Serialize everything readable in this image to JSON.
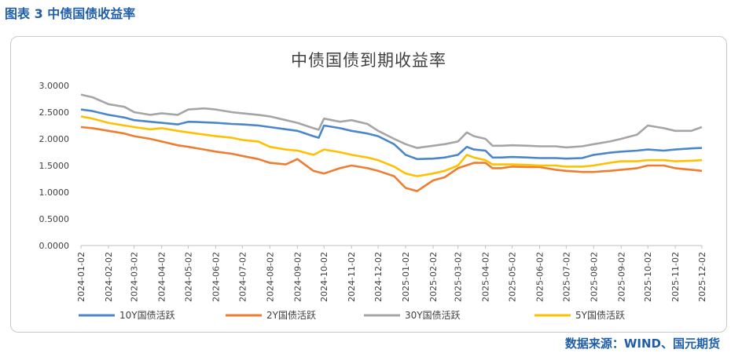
{
  "caption": "图表 3 中债国债收益率",
  "source": "数据来源：WIND、国元期货",
  "chart_data": {
    "type": "line",
    "title": "中债国债到期收益率",
    "ylim": [
      0,
      3
    ],
    "ytick_labels": [
      "0.0000",
      "0.5000",
      "1.0000",
      "1.5000",
      "2.0000",
      "2.5000",
      "3.0000"
    ],
    "ytick_values": [
      0,
      0.5,
      1,
      1.5,
      2,
      2.5,
      3
    ],
    "x_start": "2024-01-02",
    "x_end": "2025-12-02",
    "xtick_labels": [
      "2024-01-02",
      "2024-02-02",
      "2024-03-02",
      "2024-04-02",
      "2024-05-02",
      "2024-06-02",
      "2024-07-02",
      "2024-08-02",
      "2024-09-02",
      "2024-10-02",
      "2024-11-02",
      "2024-12-02",
      "2025-01-02",
      "2025-02-02",
      "2025-03-02",
      "2025-04-02",
      "2025-05-02",
      "2025-06-02",
      "2025-07-02",
      "2025-08-02",
      "2025-09-02",
      "2025-10-02",
      "2025-11-02",
      "2025-12-02"
    ],
    "grid": false,
    "legend_position": "bottom",
    "series": [
      {
        "name": "10Y国债活跃",
        "color": "#4a86c9",
        "x": [
          "2024-01-02",
          "2024-01-15",
          "2024-02-02",
          "2024-02-20",
          "2024-03-02",
          "2024-03-20",
          "2024-04-02",
          "2024-04-20",
          "2024-05-02",
          "2024-05-20",
          "2024-06-02",
          "2024-06-20",
          "2024-07-02",
          "2024-07-20",
          "2024-08-02",
          "2024-08-20",
          "2024-09-02",
          "2024-09-20",
          "2024-09-26",
          "2024-10-02",
          "2024-10-20",
          "2024-11-02",
          "2024-11-20",
          "2024-12-02",
          "2024-12-20",
          "2025-01-02",
          "2025-01-15",
          "2025-02-02",
          "2025-02-15",
          "2025-03-02",
          "2025-03-12",
          "2025-03-20",
          "2025-04-02",
          "2025-04-10",
          "2025-04-20",
          "2025-05-02",
          "2025-05-20",
          "2025-06-02",
          "2025-06-20",
          "2025-07-02",
          "2025-07-20",
          "2025-08-02",
          "2025-08-20",
          "2025-09-02",
          "2025-09-20",
          "2025-10-02",
          "2025-10-20",
          "2025-11-02",
          "2025-11-20",
          "2025-12-02"
        ],
        "values": [
          2.55,
          2.52,
          2.45,
          2.4,
          2.35,
          2.32,
          2.3,
          2.27,
          2.32,
          2.31,
          2.3,
          2.28,
          2.27,
          2.25,
          2.22,
          2.18,
          2.15,
          2.05,
          2.02,
          2.25,
          2.2,
          2.15,
          2.1,
          2.05,
          1.9,
          1.7,
          1.62,
          1.63,
          1.65,
          1.7,
          1.85,
          1.8,
          1.78,
          1.65,
          1.65,
          1.66,
          1.65,
          1.64,
          1.64,
          1.63,
          1.64,
          1.7,
          1.74,
          1.76,
          1.78,
          1.8,
          1.78,
          1.8,
          1.82,
          1.83
        ]
      },
      {
        "name": "2Y国债活跃",
        "color": "#ed7d31",
        "x": [
          "2024-01-02",
          "2024-01-15",
          "2024-02-02",
          "2024-02-20",
          "2024-03-02",
          "2024-03-20",
          "2024-04-02",
          "2024-04-20",
          "2024-05-02",
          "2024-05-20",
          "2024-06-02",
          "2024-06-20",
          "2024-07-02",
          "2024-07-20",
          "2024-08-02",
          "2024-08-20",
          "2024-09-02",
          "2024-09-20",
          "2024-10-02",
          "2024-10-20",
          "2024-11-02",
          "2024-11-20",
          "2024-12-02",
          "2024-12-20",
          "2025-01-02",
          "2025-01-15",
          "2025-02-02",
          "2025-02-15",
          "2025-03-02",
          "2025-03-20",
          "2025-04-02",
          "2025-04-10",
          "2025-04-20",
          "2025-05-02",
          "2025-05-20",
          "2025-06-02",
          "2025-06-20",
          "2025-07-02",
          "2025-07-20",
          "2025-08-02",
          "2025-08-20",
          "2025-09-02",
          "2025-09-20",
          "2025-10-02",
          "2025-10-20",
          "2025-11-02",
          "2025-11-20",
          "2025-12-02"
        ],
        "values": [
          2.22,
          2.2,
          2.15,
          2.1,
          2.05,
          2.0,
          1.95,
          1.88,
          1.85,
          1.8,
          1.76,
          1.72,
          1.68,
          1.62,
          1.55,
          1.52,
          1.62,
          1.4,
          1.35,
          1.45,
          1.5,
          1.45,
          1.4,
          1.3,
          1.08,
          1.02,
          1.22,
          1.28,
          1.45,
          1.55,
          1.55,
          1.45,
          1.45,
          1.48,
          1.47,
          1.47,
          1.42,
          1.4,
          1.38,
          1.38,
          1.4,
          1.42,
          1.45,
          1.5,
          1.5,
          1.45,
          1.42,
          1.4
        ]
      },
      {
        "name": "30Y国债活跃",
        "color": "#a5a5a5",
        "x": [
          "2024-01-02",
          "2024-01-15",
          "2024-02-02",
          "2024-02-20",
          "2024-03-02",
          "2024-03-20",
          "2024-04-02",
          "2024-04-20",
          "2024-05-02",
          "2024-05-20",
          "2024-06-02",
          "2024-06-20",
          "2024-07-02",
          "2024-07-20",
          "2024-08-02",
          "2024-08-20",
          "2024-09-02",
          "2024-09-20",
          "2024-09-26",
          "2024-10-02",
          "2024-10-20",
          "2024-11-02",
          "2024-11-20",
          "2024-12-02",
          "2024-12-20",
          "2025-01-02",
          "2025-01-15",
          "2025-02-02",
          "2025-02-15",
          "2025-03-02",
          "2025-03-12",
          "2025-03-20",
          "2025-04-02",
          "2025-04-10",
          "2025-04-20",
          "2025-05-02",
          "2025-05-20",
          "2025-06-02",
          "2025-06-20",
          "2025-07-02",
          "2025-07-20",
          "2025-08-02",
          "2025-08-20",
          "2025-09-02",
          "2025-09-20",
          "2025-10-02",
          "2025-10-20",
          "2025-11-02",
          "2025-11-20",
          "2025-12-02"
        ],
        "values": [
          2.83,
          2.78,
          2.65,
          2.6,
          2.5,
          2.45,
          2.48,
          2.45,
          2.55,
          2.57,
          2.55,
          2.5,
          2.48,
          2.45,
          2.42,
          2.35,
          2.3,
          2.2,
          2.17,
          2.38,
          2.32,
          2.35,
          2.28,
          2.15,
          2.0,
          1.9,
          1.83,
          1.87,
          1.9,
          1.95,
          2.12,
          2.05,
          2.0,
          1.87,
          1.87,
          1.88,
          1.87,
          1.86,
          1.86,
          1.84,
          1.86,
          1.9,
          1.95,
          2.0,
          2.08,
          2.25,
          2.2,
          2.15,
          2.15,
          2.22
        ]
      },
      {
        "name": "5Y国债活跃",
        "color": "#ffc000",
        "x": [
          "2024-01-02",
          "2024-01-15",
          "2024-02-02",
          "2024-02-20",
          "2024-03-02",
          "2024-03-20",
          "2024-04-02",
          "2024-04-20",
          "2024-05-02",
          "2024-05-20",
          "2024-06-02",
          "2024-06-20",
          "2024-07-02",
          "2024-07-20",
          "2024-08-02",
          "2024-08-20",
          "2024-09-02",
          "2024-09-20",
          "2024-10-02",
          "2024-10-20",
          "2024-11-02",
          "2024-11-20",
          "2024-12-02",
          "2024-12-20",
          "2025-01-02",
          "2025-01-15",
          "2025-02-02",
          "2025-02-15",
          "2025-03-02",
          "2025-03-12",
          "2025-03-20",
          "2025-04-02",
          "2025-04-10",
          "2025-04-20",
          "2025-05-02",
          "2025-05-20",
          "2025-06-02",
          "2025-06-20",
          "2025-07-02",
          "2025-07-20",
          "2025-08-02",
          "2025-08-20",
          "2025-09-02",
          "2025-09-20",
          "2025-10-02",
          "2025-10-20",
          "2025-11-02",
          "2025-11-20",
          "2025-12-02"
        ],
        "values": [
          2.42,
          2.38,
          2.3,
          2.25,
          2.22,
          2.18,
          2.2,
          2.15,
          2.12,
          2.08,
          2.05,
          2.02,
          1.98,
          1.95,
          1.85,
          1.8,
          1.78,
          1.7,
          1.8,
          1.75,
          1.7,
          1.65,
          1.6,
          1.48,
          1.35,
          1.3,
          1.35,
          1.4,
          1.5,
          1.7,
          1.65,
          1.6,
          1.52,
          1.52,
          1.52,
          1.51,
          1.5,
          1.5,
          1.48,
          1.48,
          1.5,
          1.55,
          1.58,
          1.58,
          1.6,
          1.6,
          1.58,
          1.59,
          1.6
        ]
      }
    ]
  }
}
